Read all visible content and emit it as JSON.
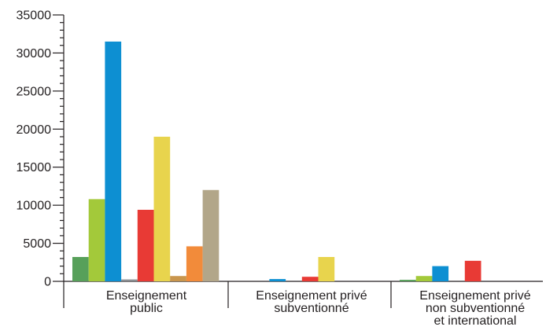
{
  "chart_data": {
    "type": "bar",
    "title": "",
    "xlabel": "",
    "ylabel": "",
    "ylim": [
      0,
      35000
    ],
    "yticks": [
      "0",
      "5000",
      "10000",
      "15000",
      "20000",
      "25000",
      "30000",
      "35000"
    ],
    "categories": [
      [
        "Enseignement",
        "public"
      ],
      [
        "Enseignement privé",
        "subventionné"
      ],
      [
        "Enseignement privé",
        "non subventionné",
        "et international"
      ]
    ],
    "series": [
      {
        "color": "#57a05a",
        "values": [
          3200,
          0,
          200
        ]
      },
      {
        "color": "#a3c93a",
        "values": [
          10800,
          0,
          700
        ]
      },
      {
        "color": "#0d8fd2",
        "values": [
          31500,
          300,
          2000
        ]
      },
      {
        "color": "#8a8e92",
        "values": [
          250,
          0,
          0
        ]
      },
      {
        "color": "#e83a35",
        "values": [
          9400,
          600,
          2700
        ]
      },
      {
        "color": "#e8d44d",
        "values": [
          19000,
          3200,
          0
        ]
      },
      {
        "color": "#c9964d",
        "values": [
          700,
          0,
          0
        ]
      },
      {
        "color": "#f28b3a",
        "values": [
          4600,
          0,
          0
        ]
      },
      {
        "color": "#b2a689",
        "values": [
          12000,
          0,
          0
        ]
      }
    ],
    "grid": false,
    "legend": "none"
  }
}
